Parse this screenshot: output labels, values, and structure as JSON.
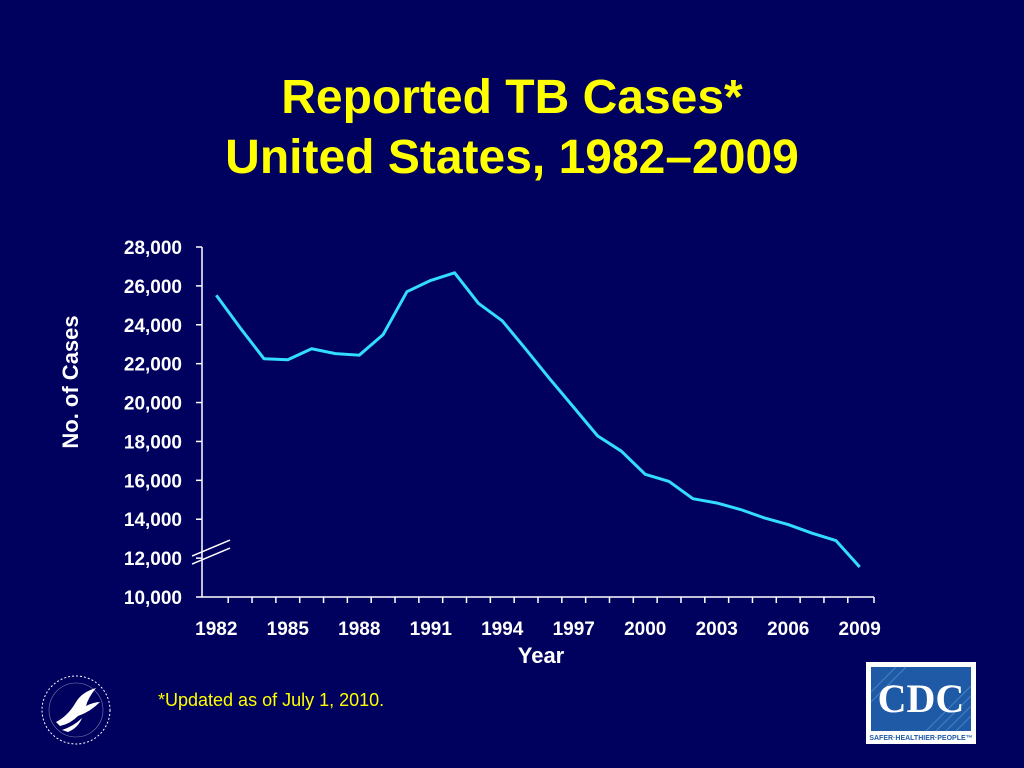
{
  "slide": {
    "title_line1": "Reported TB Cases*",
    "title_line2": "United States, 1982–2009",
    "footnote": "*Updated as of  July 1, 2010.",
    "background_color": "#00005e",
    "title_color": "#ffff00"
  },
  "logos": {
    "left": "hhs-seal-icon",
    "right": {
      "name": "cdc-logo-icon",
      "text": "CDC",
      "tagline": "SAFER·HEALTHIER·PEOPLE™"
    }
  },
  "chart_data": {
    "type": "line",
    "xlabel": "Year",
    "ylabel": "No. of Cases",
    "ylim": [
      10000,
      28000
    ],
    "y_ticks": [
      "10,000",
      "12,000",
      "14,000",
      "16,000",
      "18,000",
      "20,000",
      "22,000",
      "24,000",
      "26,000",
      "28,000"
    ],
    "x_ticks": [
      "1982",
      "1985",
      "1988",
      "1991",
      "1994",
      "1997",
      "2000",
      "2003",
      "2006",
      "2009"
    ],
    "axis_break": true,
    "grid": false,
    "line_color": "#33ddff",
    "series": [
      {
        "x": [
          1982,
          1983,
          1984,
          1985,
          1986,
          1987,
          1988,
          1989,
          1990,
          1991,
          1992,
          1993,
          1994,
          1995,
          1996,
          1997,
          1998,
          1999,
          2000,
          2001,
          2002,
          2003,
          2004,
          2005,
          2006,
          2007,
          2008,
          2009
        ],
        "values": [
          25520,
          23846,
          22255,
          22201,
          22768,
          22517,
          22436,
          23495,
          25701,
          26283,
          26673,
          25102,
          24205,
          22727,
          21210,
          19751,
          18287,
          17499,
          16308,
          15945,
          15055,
          14835,
          14499,
          14065,
          13727,
          13282,
          12904,
          11540
        ]
      }
    ]
  }
}
